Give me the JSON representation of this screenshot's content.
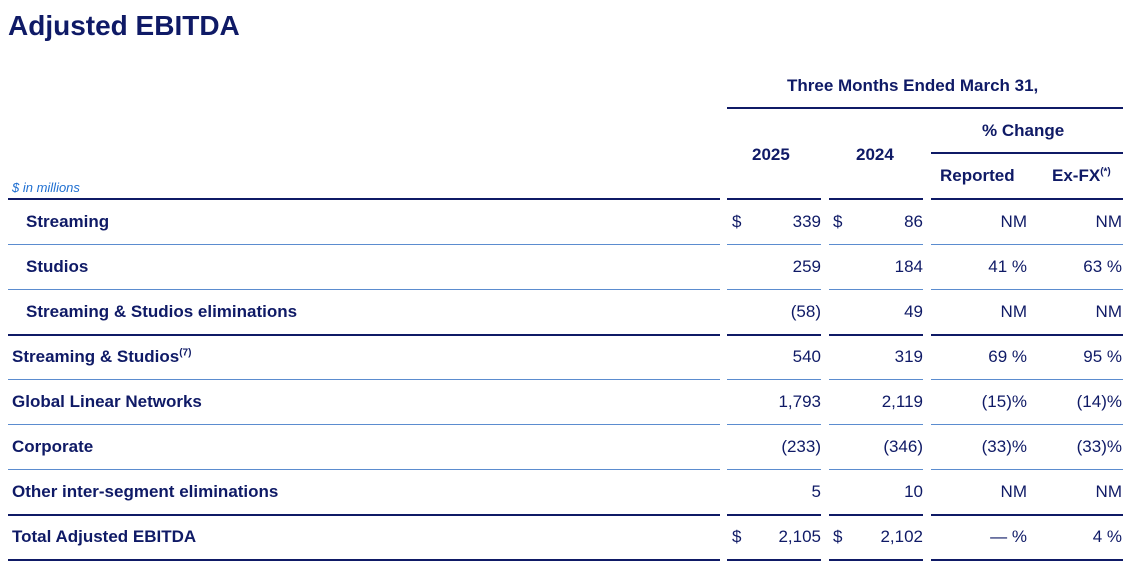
{
  "title": "Adjusted EBITDA",
  "units_note": "$ in millions",
  "header": {
    "period": "Three Months Ended March 31,",
    "year_current": "2025",
    "year_prior": "2024",
    "pct_change": "% Change",
    "reported": "Reported",
    "exfx": "Ex-FX",
    "exfx_note": "(*)"
  },
  "currency_symbol": "$",
  "rows": [
    {
      "label": "Streaming",
      "note": "",
      "v2025": "339",
      "v2024": "86",
      "reported": "NM",
      "exfx": "NM",
      "dollar": true
    },
    {
      "label": "Studios",
      "note": "",
      "v2025": "259",
      "v2024": "184",
      "reported": "41 %",
      "exfx": "63 %",
      "dollar": false
    },
    {
      "label": "Streaming & Studios eliminations",
      "note": "",
      "v2025": "(58)",
      "v2024": "49",
      "reported": "NM",
      "exfx": "NM",
      "dollar": false
    },
    {
      "label": "Streaming & Studios",
      "note": "(7)",
      "v2025": "540",
      "v2024": "319",
      "reported": "69 %",
      "exfx": "95 %",
      "dollar": false
    },
    {
      "label": "Global Linear Networks",
      "note": "",
      "v2025": "1,793",
      "v2024": "2,119",
      "reported": "(15)%",
      "exfx": "(14)%",
      "dollar": false
    },
    {
      "label": "Corporate",
      "note": "",
      "v2025": "(233)",
      "v2024": "(346)",
      "reported": "(33)%",
      "exfx": "(33)%",
      "dollar": false
    },
    {
      "label": "Other inter-segment eliminations",
      "note": "",
      "v2025": "5",
      "v2024": "10",
      "reported": "NM",
      "exfx": "NM",
      "dollar": false
    },
    {
      "label": "Total Adjusted EBITDA",
      "note": "",
      "v2025": "2,105",
      "v2024": "2,102",
      "reported": "— %",
      "exfx": "4 %",
      "dollar": true
    }
  ]
}
